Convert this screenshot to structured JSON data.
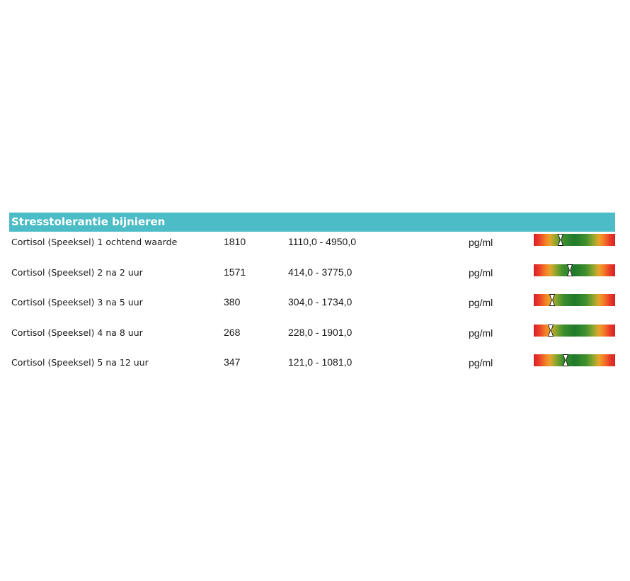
{
  "section": {
    "title": "Stresstolerantie bijnieren"
  },
  "rows": [
    {
      "name": "Cortisol (Speeksel) 1 ochtend waarde",
      "value": "1810",
      "range": "1110,0 - 4950,0",
      "unit": "pg/ml",
      "scale_position": 0.33
    },
    {
      "name": "Cortisol (Speeksel) 2 na 2 uur",
      "value": "1571",
      "range": "414,0 - 3775,0",
      "unit": "pg/ml",
      "scale_position": 0.44
    },
    {
      "name": "Cortisol (Speeksel) 3 na 5 uur",
      "value": "380",
      "range": "304,0 - 1734,0",
      "unit": "pg/ml",
      "scale_position": 0.23
    },
    {
      "name": "Cortisol (Speeksel) 4 na 8 uur",
      "value": "268",
      "range": "228,0 - 1901,0",
      "unit": "pg/ml",
      "scale_position": 0.21
    },
    {
      "name": "Cortisol (Speeksel) 5 na 12 uur",
      "value": "347",
      "range": "121,0 - 1081,0",
      "unit": "pg/ml",
      "scale_position": 0.39
    }
  ],
  "colors": {
    "header_bg": "#4cbcc6",
    "header_text": "#ffffff",
    "scale_low": "#d91f26",
    "scale_mid": "#1f7a2b"
  }
}
